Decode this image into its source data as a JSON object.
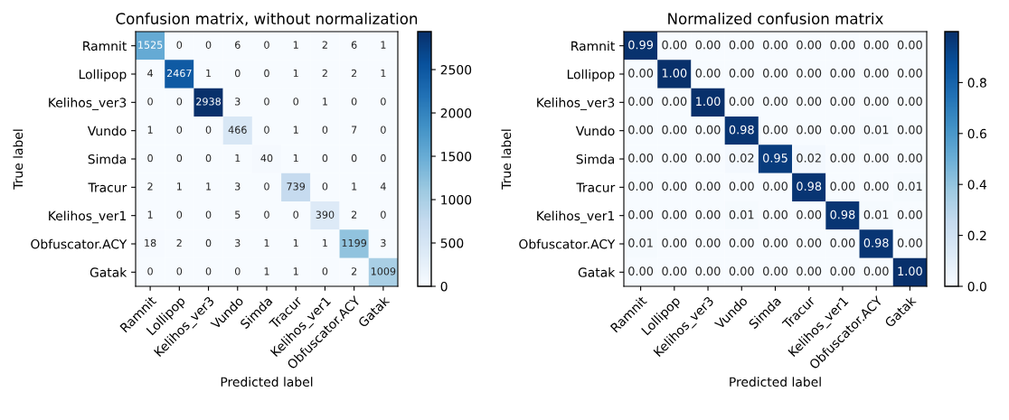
{
  "chart_data": [
    {
      "type": "heatmap",
      "title": "Confusion matrix, without normalization",
      "xlabel": "Predicted label",
      "ylabel": "True label",
      "categories": [
        "Ramnit",
        "Lollipop",
        "Kelihos_ver3",
        "Vundo",
        "Simda",
        "Tracur",
        "Kelihos_ver1",
        "Obfuscator.ACY",
        "Gatak"
      ],
      "y_categories": [
        "Ramnit",
        "Lollipop",
        "Kelihos_ver3",
        "Vundo",
        "Simda",
        "Tracur",
        "Kelihos_ver1",
        "Obfuscator.ACY",
        "Gatak"
      ],
      "cells": [
        [
          1525,
          0,
          0,
          6,
          0,
          1,
          2,
          6,
          1
        ],
        [
          4,
          2467,
          1,
          0,
          0,
          1,
          2,
          2,
          1
        ],
        [
          0,
          0,
          2938,
          3,
          0,
          0,
          1,
          0,
          0
        ],
        [
          1,
          0,
          0,
          466,
          0,
          1,
          0,
          7,
          0
        ],
        [
          0,
          0,
          0,
          1,
          40,
          1,
          0,
          0,
          0
        ],
        [
          2,
          1,
          1,
          3,
          0,
          739,
          0,
          1,
          4
        ],
        [
          1,
          0,
          0,
          5,
          0,
          0,
          390,
          2,
          0
        ],
        [
          18,
          2,
          0,
          3,
          1,
          1,
          1,
          1199,
          3
        ],
        [
          0,
          0,
          0,
          0,
          1,
          1,
          0,
          2,
          1009
        ]
      ],
      "data_labels": true,
      "clim": [
        0,
        2938
      ],
      "cticks": [
        0,
        500,
        1000,
        1500,
        2000,
        2500
      ]
    },
    {
      "type": "heatmap",
      "title": "Normalized confusion matrix",
      "xlabel": "Predicted label",
      "ylabel": "True label",
      "categories": [
        "Ramnit",
        "Lollipop",
        "Kelihos_ver3",
        "Vundo",
        "Simda",
        "Tracur",
        "Kelihos_ver1",
        "Obfuscator.ACY",
        "Gatak"
      ],
      "y_categories": [
        "Ramnit",
        "Lollipop",
        "Kelihos_ver3",
        "Vundo",
        "Simda",
        "Tracur",
        "Kelihos_ver1",
        "Obfuscator.ACY",
        "Gatak"
      ],
      "cells": [
        [
          0.99,
          0,
          0,
          0,
          0,
          0,
          0,
          0,
          0
        ],
        [
          0,
          1.0,
          0,
          0,
          0,
          0,
          0,
          0,
          0
        ],
        [
          0,
          0,
          1.0,
          0,
          0,
          0,
          0,
          0,
          0
        ],
        [
          0,
          0,
          0,
          0.98,
          0,
          0,
          0,
          0.01,
          0
        ],
        [
          0,
          0,
          0,
          0.02,
          0.95,
          0.02,
          0,
          0,
          0
        ],
        [
          0,
          0,
          0,
          0,
          0,
          0.98,
          0,
          0,
          0.01
        ],
        [
          0,
          0,
          0,
          0.01,
          0,
          0,
          0.98,
          0.01,
          0
        ],
        [
          0.01,
          0,
          0,
          0,
          0,
          0,
          0,
          0.98,
          0
        ],
        [
          0,
          0,
          0,
          0,
          0,
          0,
          0,
          0,
          1.0
        ]
      ],
      "cell_labels": [
        [
          "0.99",
          "0.00",
          "0.00",
          "0.00",
          "0.00",
          "0.00",
          "0.00",
          "0.00",
          "0.00"
        ],
        [
          "0.00",
          "1.00",
          "0.00",
          "0.00",
          "0.00",
          "0.00",
          "0.00",
          "0.00",
          "0.00"
        ],
        [
          "0.00",
          "0.00",
          "1.00",
          "0.00",
          "0.00",
          "0.00",
          "0.00",
          "0.00",
          "0.00"
        ],
        [
          "0.00",
          "0.00",
          "0.00",
          "0.98",
          "0.00",
          "0.00",
          "0.00",
          "0.01",
          "0.00"
        ],
        [
          "0.00",
          "0.00",
          "0.00",
          "0.02",
          "0.95",
          "0.02",
          "0.00",
          "0.00",
          "0.00"
        ],
        [
          "0.00",
          "0.00",
          "0.00",
          "0.00",
          "0.00",
          "0.98",
          "0.00",
          "0.00",
          "0.01"
        ],
        [
          "0.00",
          "0.00",
          "0.00",
          "0.01",
          "0.00",
          "0.00",
          "0.98",
          "0.01",
          "0.00"
        ],
        [
          "0.01",
          "0.00",
          "0.00",
          "0.00",
          "0.00",
          "0.00",
          "0.00",
          "0.98",
          "0.00"
        ],
        [
          "0.00",
          "0.00",
          "0.00",
          "0.00",
          "0.00",
          "0.00",
          "0.00",
          "0.00",
          "1.00"
        ]
      ],
      "clim": [
        0,
        1
      ],
      "cticks": [
        {
          "value": 0,
          "label": "0.0"
        },
        {
          "value": 0.2,
          "label": "0.2"
        },
        {
          "value": 0.4,
          "label": "0.4"
        },
        {
          "value": 0.6,
          "label": "0.6"
        },
        {
          "value": 0.8,
          "label": "0.8"
        }
      ]
    }
  ]
}
